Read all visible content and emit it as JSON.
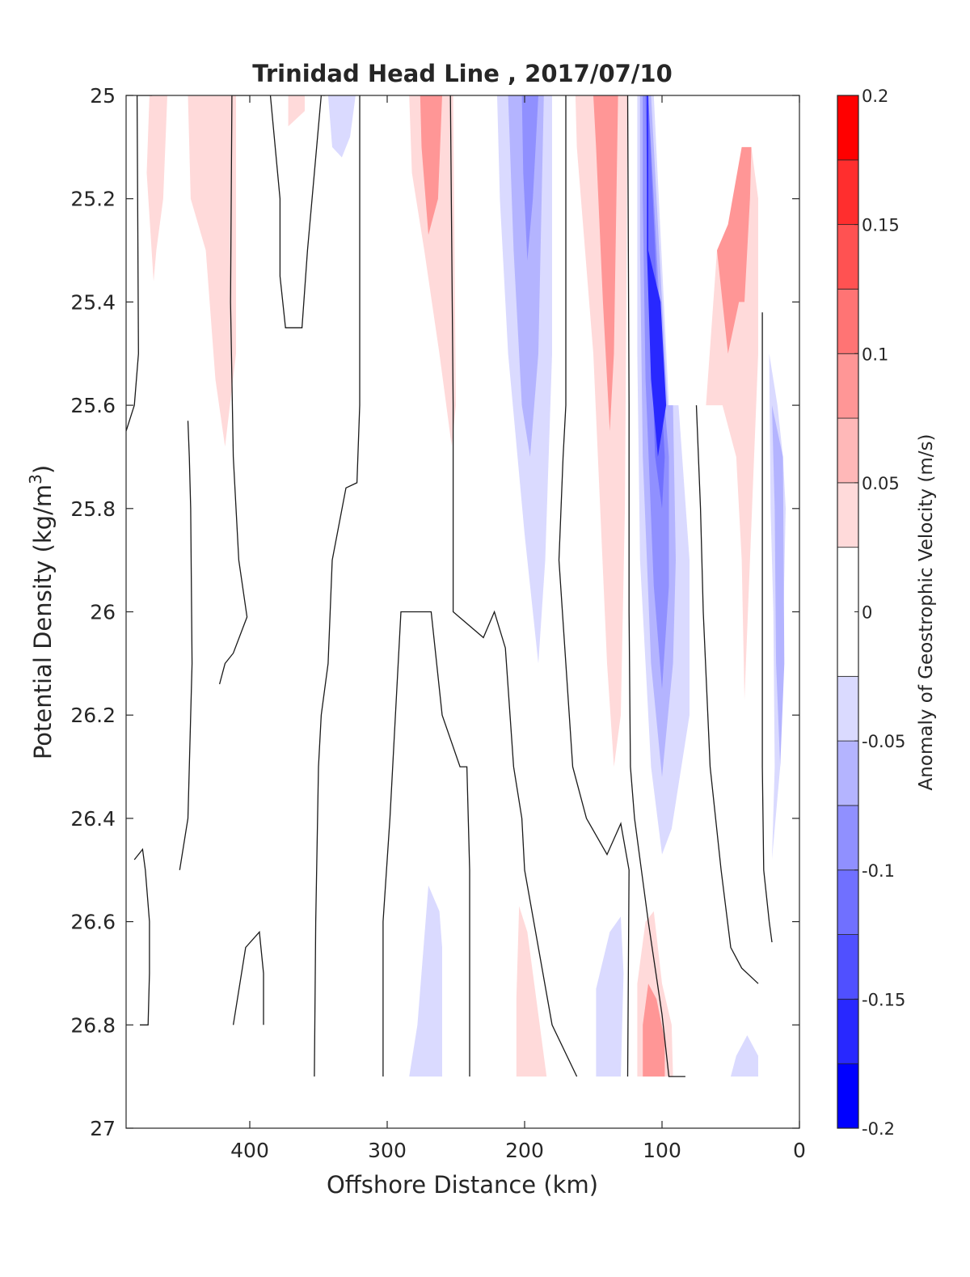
{
  "chart_data": {
    "type": "contour",
    "title": "Trinidad Head Line , 2017/07/10",
    "xlabel": "Offshore Distance (km)",
    "ylabel_main": "Potential Density (kg/m",
    "ylabel_sup": "3",
    "ylabel_tail": ")",
    "xlim": [
      490,
      0
    ],
    "ylim": [
      25,
      27
    ],
    "y_reversed": true,
    "x_reversed": true,
    "xticks": [
      400,
      300,
      200,
      100,
      0
    ],
    "xtick_labels": [
      "400",
      "300",
      "200",
      "100",
      "0"
    ],
    "yticks": [
      25,
      25.2,
      25.4,
      25.6,
      25.8,
      26,
      26.2,
      26.4,
      26.6,
      26.8,
      27
    ],
    "ytick_labels": [
      "25",
      "25.2",
      "25.4",
      "25.6",
      "25.8",
      "26",
      "26.2",
      "26.4",
      "26.6",
      "26.8",
      "27"
    ],
    "colorbar": {
      "label": "Anomaly of Geostrophic Velocity (m/s)",
      "range": [
        -0.2,
        0.2
      ],
      "levels": [
        -0.2,
        -0.175,
        -0.15,
        -0.125,
        -0.1,
        -0.075,
        -0.05,
        -0.025,
        0.025,
        0.05,
        0.075,
        0.1,
        0.125,
        0.15,
        0.175,
        0.2
      ],
      "colors": [
        "#0000ff",
        "#2828ff",
        "#5050ff",
        "#7070ff",
        "#9090ff",
        "#b4b4ff",
        "#dadaff",
        "#ffffff",
        "#ffdada",
        "#ffb8b8",
        "#ff9696",
        "#ff7474",
        "#ff5252",
        "#ff2e2e",
        "#ff0000"
      ],
      "ticks": [
        -0.2,
        -0.15,
        -0.1,
        -0.05,
        0,
        0.05,
        0.1,
        0.15,
        0.2
      ],
      "tick_labels": [
        "-0.2",
        "-0.15",
        "-0.1",
        "-0.05",
        "0",
        "0.05",
        "0.1",
        "0.15",
        "0.2"
      ]
    },
    "filled_regions": [
      {
        "v": 0.04,
        "pts": [
          [
            473,
            25
          ],
          [
            460,
            25
          ],
          [
            463,
            25.2
          ],
          [
            468,
            25.3
          ],
          [
            470,
            25.36
          ],
          [
            475,
            25.15
          ]
        ]
      },
      {
        "v": 0.04,
        "pts": [
          [
            445,
            25
          ],
          [
            410,
            25
          ],
          [
            410,
            25.5
          ],
          [
            418,
            25.68
          ],
          [
            425,
            25.55
          ],
          [
            432,
            25.3
          ],
          [
            443,
            25.2
          ]
        ]
      },
      {
        "v": 0.04,
        "pts": [
          [
            372,
            25
          ],
          [
            360,
            25
          ],
          [
            360,
            25.03
          ],
          [
            372,
            25.06
          ]
        ]
      },
      {
        "v": -0.04,
        "pts": [
          [
            343,
            25
          ],
          [
            323,
            25
          ],
          [
            327,
            25.08
          ],
          [
            333,
            25.12
          ],
          [
            340,
            25.1
          ]
        ]
      },
      {
        "v": 0.04,
        "pts": [
          [
            284,
            25
          ],
          [
            252,
            25
          ],
          [
            250,
            25.6
          ],
          [
            253,
            25.68
          ],
          [
            262,
            25.5
          ],
          [
            273,
            25.3
          ],
          [
            282,
            25.15
          ]
        ]
      },
      {
        "v": 0.075,
        "pts": [
          [
            276,
            25
          ],
          [
            260,
            25
          ],
          [
            263,
            25.2
          ],
          [
            270,
            25.27
          ],
          [
            275,
            25.1
          ]
        ]
      },
      {
        "v": -0.04,
        "pts": [
          [
            220,
            25
          ],
          [
            180,
            25
          ],
          [
            180,
            25.5
          ],
          [
            185,
            25.9
          ],
          [
            190,
            26.1
          ],
          [
            200,
            25.85
          ],
          [
            212,
            25.5
          ],
          [
            218,
            25.2
          ]
        ]
      },
      {
        "v": -0.075,
        "pts": [
          [
            212,
            25
          ],
          [
            186,
            25
          ],
          [
            190,
            25.5
          ],
          [
            196,
            25.7
          ],
          [
            202,
            25.6
          ],
          [
            208,
            25.3
          ]
        ]
      },
      {
        "v": -0.1,
        "pts": [
          [
            202,
            25
          ],
          [
            190,
            25
          ],
          [
            194,
            25.2
          ],
          [
            198,
            25.32
          ],
          [
            201,
            25.15
          ]
        ]
      },
      {
        "v": 0.04,
        "pts": [
          [
            163,
            25
          ],
          [
            125,
            25
          ],
          [
            127,
            25.8
          ],
          [
            130,
            26.2
          ],
          [
            135,
            26.3
          ],
          [
            140,
            26.1
          ],
          [
            150,
            25.5
          ],
          [
            162,
            25.1
          ]
        ]
      },
      {
        "v": 0.075,
        "pts": [
          [
            150,
            25
          ],
          [
            132,
            25
          ],
          [
            135,
            25.5
          ],
          [
            138,
            25.65
          ],
          [
            143,
            25.4
          ],
          [
            148,
            25.1
          ]
        ]
      },
      {
        "v": -0.04,
        "pts": [
          [
            118,
            25
          ],
          [
            106,
            25
          ],
          [
            95,
            25.6
          ],
          [
            88,
            25.6
          ],
          [
            80,
            25.9
          ],
          [
            80,
            26.2
          ],
          [
            93,
            26.42
          ],
          [
            100,
            26.47
          ],
          [
            108,
            26.3
          ],
          [
            116,
            25.9
          ],
          [
            118,
            25.5
          ]
        ]
      },
      {
        "v": -0.075,
        "pts": [
          [
            116,
            25
          ],
          [
            108,
            25
          ],
          [
            96,
            25.6
          ],
          [
            92,
            25.6
          ],
          [
            90,
            25.9
          ],
          [
            92,
            26.1
          ],
          [
            100,
            26.32
          ],
          [
            108,
            26.1
          ],
          [
            114,
            25.7
          ],
          [
            116,
            25.3
          ]
        ]
      },
      {
        "v": -0.1,
        "pts": [
          [
            114,
            25
          ],
          [
            110,
            25
          ],
          [
            98,
            25.6
          ],
          [
            95,
            25.7
          ],
          [
            95,
            25.95
          ],
          [
            100,
            26.15
          ],
          [
            106,
            25.95
          ],
          [
            112,
            25.55
          ],
          [
            114,
            25.2
          ]
        ]
      },
      {
        "v": -0.125,
        "pts": [
          [
            112,
            25
          ],
          [
            110,
            25
          ],
          [
            100,
            25.6
          ],
          [
            98,
            25.7
          ],
          [
            100,
            25.8
          ],
          [
            105,
            25.7
          ],
          [
            110,
            25.3
          ]
        ]
      },
      {
        "v": -0.165,
        "pts": [
          [
            111,
            25
          ],
          [
            110,
            25
          ],
          [
            110,
            25.3
          ],
          [
            101,
            25.4
          ],
          [
            97,
            25.6
          ],
          [
            103,
            25.7
          ],
          [
            108,
            25.55
          ],
          [
            111,
            25.3
          ]
        ]
      },
      {
        "v": 0.04,
        "pts": [
          [
            60,
            25.3
          ],
          [
            68,
            25.6
          ],
          [
            56,
            25.6
          ],
          [
            46,
            25.7
          ],
          [
            42,
            25.9
          ],
          [
            40,
            26.17
          ],
          [
            36,
            25.9
          ],
          [
            30,
            25.5
          ],
          [
            30,
            25.2
          ],
          [
            35,
            25.1
          ],
          [
            42,
            25.2
          ],
          [
            52,
            25.25
          ]
        ]
      },
      {
        "v": 0.075,
        "pts": [
          [
            60,
            25.3
          ],
          [
            52,
            25.25
          ],
          [
            42,
            25.1
          ],
          [
            35,
            25.1
          ],
          [
            36,
            25.2
          ],
          [
            40,
            25.4
          ],
          [
            44,
            25.4
          ],
          [
            52,
            25.5
          ]
        ]
      },
      {
        "v": -0.04,
        "pts": [
          [
            27,
            25.45
          ],
          [
            22,
            25.5
          ],
          [
            21,
            25.8
          ],
          [
            19,
            26.0
          ],
          [
            18,
            26.3
          ],
          [
            20,
            26.48
          ],
          [
            14,
            26.3
          ],
          [
            10,
            25.8
          ],
          [
            12,
            25.7
          ],
          [
            16,
            25.6
          ],
          [
            22,
            25.5
          ]
        ]
      },
      {
        "v": -0.075,
        "pts": [
          [
            20,
            25.6
          ],
          [
            12,
            25.7
          ],
          [
            11,
            26.1
          ],
          [
            14,
            26.3
          ],
          [
            17,
            26.1
          ],
          [
            18,
            25.8
          ]
        ]
      },
      {
        "v": -0.04,
        "pts": [
          [
            284,
            26.9
          ],
          [
            260,
            26.9
          ],
          [
            260,
            26.65
          ],
          [
            262,
            26.58
          ],
          [
            270,
            26.53
          ],
          [
            278,
            26.8
          ]
        ]
      },
      {
        "v": 0.04,
        "pts": [
          [
            206,
            26.9
          ],
          [
            184,
            26.9
          ],
          [
            190,
            26.78
          ],
          [
            198,
            26.62
          ],
          [
            204,
            26.57
          ],
          [
            206,
            26.75
          ]
        ]
      },
      {
        "v": -0.04,
        "pts": [
          [
            148,
            26.9
          ],
          [
            130,
            26.9
          ],
          [
            128,
            26.7
          ],
          [
            130,
            26.59
          ],
          [
            138,
            26.62
          ],
          [
            148,
            26.73
          ]
        ]
      },
      {
        "v": 0.04,
        "pts": [
          [
            118,
            26.9
          ],
          [
            92,
            26.9
          ],
          [
            93,
            26.8
          ],
          [
            100,
            26.72
          ],
          [
            106,
            26.58
          ],
          [
            112,
            26.6
          ],
          [
            118,
            26.72
          ]
        ]
      },
      {
        "v": 0.075,
        "pts": [
          [
            114,
            26.9
          ],
          [
            98,
            26.9
          ],
          [
            98,
            26.83
          ],
          [
            104,
            26.75
          ],
          [
            110,
            26.72
          ],
          [
            114,
            26.8
          ]
        ]
      },
      {
        "v": -0.04,
        "pts": [
          [
            50,
            26.9
          ],
          [
            30,
            26.9
          ],
          [
            30,
            26.86
          ],
          [
            38,
            26.82
          ],
          [
            46,
            26.86
          ]
        ]
      }
    ],
    "zero_contours": [
      [
        [
          490,
          25.65
        ],
        [
          484,
          25.6
        ],
        [
          481,
          25.5
        ],
        [
          482,
          25
        ],
        [
          471,
          25
        ]
      ],
      [
        [
          480,
          26.8
        ],
        [
          474,
          26.8
        ],
        [
          473,
          26.7
        ],
        [
          473,
          26.6
        ],
        [
          476,
          26.5
        ],
        [
          478,
          26.46
        ],
        [
          484,
          26.48
        ]
      ],
      [
        [
          451,
          26.5
        ],
        [
          445,
          26.4
        ],
        [
          442,
          26.1
        ],
        [
          443,
          25.8
        ],
        [
          444,
          25.7
        ],
        [
          445,
          25.63
        ]
      ],
      [
        [
          422,
          26.14
        ],
        [
          418,
          26.1
        ],
        [
          412,
          26.08
        ],
        [
          402,
          26.01
        ],
        [
          408,
          25.9
        ],
        [
          412,
          25.7
        ],
        [
          414,
          25.4
        ],
        [
          413,
          25
        ],
        [
          400,
          25
        ]
      ],
      [
        [
          412,
          26.8
        ],
        [
          403,
          26.65
        ],
        [
          393,
          26.62
        ],
        [
          390,
          26.7
        ],
        [
          390,
          26.8
        ]
      ],
      [
        [
          385,
          25
        ],
        [
          378,
          25.2
        ],
        [
          378,
          25.35
        ],
        [
          374,
          25.45
        ],
        [
          362,
          25.45
        ],
        [
          358,
          25.3
        ],
        [
          348,
          25
        ],
        [
          345,
          25
        ]
      ],
      [
        [
          353,
          26.9
        ],
        [
          352,
          26.6
        ],
        [
          350,
          26.3
        ],
        [
          348,
          26.2
        ],
        [
          343,
          26.1
        ],
        [
          340,
          25.9
        ],
        [
          330,
          25.76
        ],
        [
          322,
          25.75
        ],
        [
          320,
          25.6
        ],
        [
          320,
          25
        ]
      ],
      [
        [
          303,
          26.9
        ],
        [
          303,
          26.6
        ],
        [
          298,
          26.4
        ],
        [
          290,
          26.0
        ],
        [
          268,
          26.0
        ],
        [
          260,
          26.2
        ],
        [
          247,
          26.3
        ],
        [
          242,
          26.3
        ],
        [
          240,
          26.5
        ],
        [
          240,
          26.9
        ]
      ],
      [
        [
          254,
          25
        ],
        [
          252,
          25.6
        ],
        [
          252,
          26.0
        ],
        [
          230,
          26.05
        ],
        [
          222,
          26.0
        ],
        [
          214,
          26.07
        ],
        [
          208,
          26.3
        ],
        [
          202,
          26.4
        ],
        [
          200,
          26.5
        ],
        [
          190,
          26.65
        ],
        [
          180,
          26.8
        ],
        [
          162,
          26.9
        ]
      ],
      [
        [
          170,
          25
        ],
        [
          170,
          25.6
        ],
        [
          172,
          25.7
        ],
        [
          175,
          25.9
        ],
        [
          165,
          26.3
        ],
        [
          155,
          26.4
        ],
        [
          140,
          26.47
        ],
        [
          130,
          26.41
        ],
        [
          124,
          26.5
        ],
        [
          125,
          26.9
        ]
      ],
      [
        [
          125,
          25
        ],
        [
          124,
          25.6
        ],
        [
          124,
          26.0
        ],
        [
          123,
          26.3
        ],
        [
          120,
          26.4
        ],
        [
          115,
          26.5
        ],
        [
          110,
          26.6
        ],
        [
          100,
          26.78
        ],
        [
          95,
          26.9
        ],
        [
          83,
          26.9
        ]
      ],
      [
        [
          75,
          25.6
        ],
        [
          72,
          25.8
        ],
        [
          70,
          26.0
        ],
        [
          65,
          26.3
        ],
        [
          57,
          26.5
        ],
        [
          50,
          26.65
        ],
        [
          42,
          26.69
        ],
        [
          30,
          26.72
        ]
      ],
      [
        [
          27,
          25.42
        ],
        [
          27,
          26.3
        ],
        [
          26,
          26.5
        ],
        [
          22,
          26.6
        ],
        [
          20,
          26.64
        ]
      ]
    ]
  }
}
